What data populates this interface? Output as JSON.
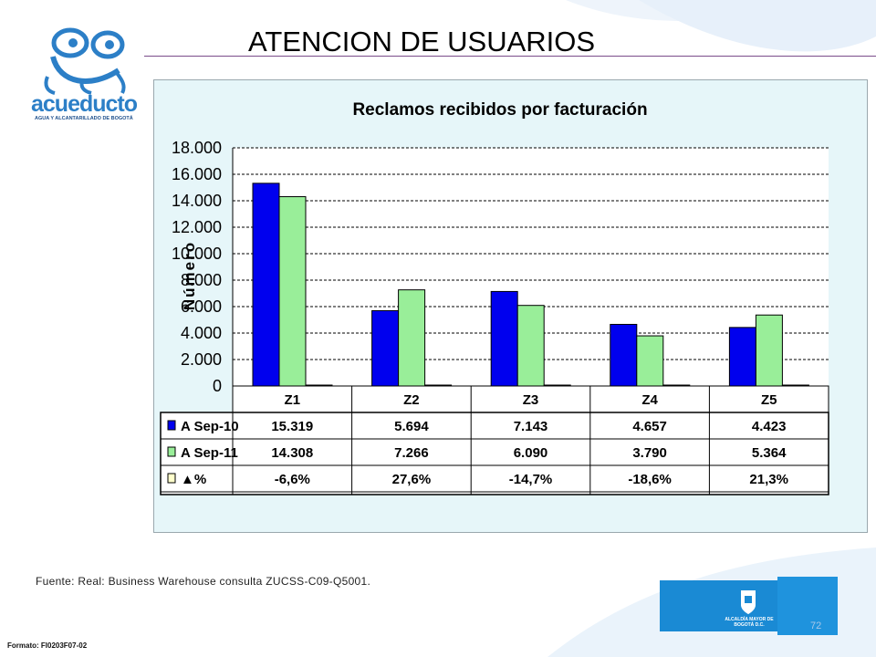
{
  "page": {
    "title": "ATENCION DE USUARIOS",
    "source": "Fuente: Real: Business Warehouse consulta ZUCSS-C09-Q5001.",
    "page_number": "72",
    "format_code": "Formato: FI0203F07-02",
    "logo_text": "acueducto",
    "logo_subtext": "AGUA Y ALCANTARILLADO DE BOGOTÁ",
    "footer_crest_text": "ALCALDÍA MAYOR DE BOGOTÁ D.C."
  },
  "colors": {
    "series_sep10": "#0000ee",
    "series_sep11": "#99ee99",
    "series_pct": "#ffffcc",
    "panel_background": "#e6f6f9",
    "brand_blue": "#1a8ad4"
  },
  "chart_data": {
    "type": "bar",
    "title": "Reclamos recibidos por facturación",
    "ylabel": "Número",
    "xlabel": "",
    "ylim": [
      0,
      18000
    ],
    "yticks": [
      "0",
      "2.000",
      "4.000",
      "6.000",
      "8.000",
      "10.000",
      "12.000",
      "14.000",
      "16.000",
      "18.000"
    ],
    "categories": [
      "Z1",
      "Z2",
      "Z3",
      "Z4",
      "Z5"
    ],
    "grid": true,
    "legend": "table-below",
    "series": [
      {
        "name": "A Sep-10",
        "values": [
          15319,
          5694,
          7143,
          4657,
          4423
        ],
        "labels": [
          "15.319",
          "5.694",
          "7.143",
          "4.657",
          "4.423"
        ]
      },
      {
        "name": "A Sep-11",
        "values": [
          14308,
          7266,
          6090,
          3790,
          5364
        ],
        "labels": [
          "14.308",
          "7.266",
          "6.090",
          "3.790",
          "5.364"
        ]
      },
      {
        "name": "▲%",
        "values": [
          -6.6,
          27.6,
          -14.7,
          -18.6,
          21.3
        ],
        "labels": [
          "-6,6%",
          "27,6%",
          "-14,7%",
          "-18,6%",
          "21,3%"
        ]
      }
    ]
  }
}
